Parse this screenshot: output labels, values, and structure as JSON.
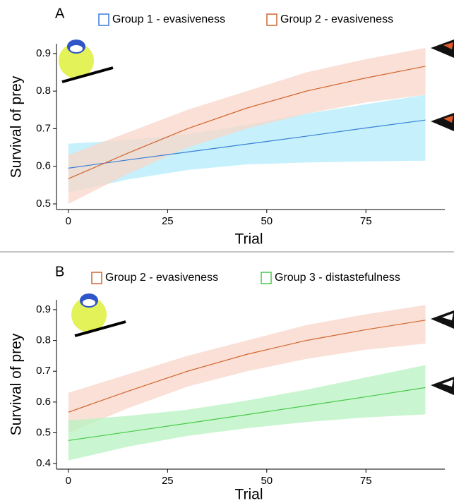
{
  "chart_data": [
    {
      "type": "line-band",
      "panel_label": "A",
      "xlabel": "Trial",
      "ylabel": "Survival of prey",
      "x": [
        0,
        15,
        30,
        45,
        60,
        75,
        90
      ],
      "xlim": [
        -3,
        94
      ],
      "xticks": [
        0,
        25,
        50,
        75
      ],
      "ylim": [
        0.485,
        0.926
      ],
      "yticks": [
        0.5,
        0.6,
        0.7,
        0.8,
        0.9
      ],
      "series": [
        {
          "name": "Group 1 - evasiveness",
          "color": "#3a7fd5",
          "band_color": "#b3ecfb",
          "values": [
            0.595,
            0.617,
            0.638,
            0.659,
            0.68,
            0.702,
            0.723
          ],
          "lower": [
            0.53,
            0.565,
            0.59,
            0.605,
            0.61,
            0.613,
            0.615
          ],
          "upper": [
            0.66,
            0.67,
            0.685,
            0.71,
            0.74,
            0.765,
            0.79
          ]
        },
        {
          "name": "Group 2 - evasiveness",
          "color": "#d2662f",
          "band_color": "#f8d5c8",
          "values": [
            0.567,
            0.635,
            0.7,
            0.755,
            0.8,
            0.835,
            0.866
          ],
          "lower": [
            0.5,
            0.58,
            0.65,
            0.7,
            0.74,
            0.77,
            0.79
          ],
          "upper": [
            0.63,
            0.69,
            0.75,
            0.8,
            0.85,
            0.885,
            0.915
          ]
        }
      ]
    },
    {
      "type": "line-band",
      "panel_label": "B",
      "xlabel": "Trial",
      "ylabel": "Survival of prey",
      "x": [
        0,
        15,
        30,
        45,
        60,
        75,
        90
      ],
      "xlim": [
        -3,
        94
      ],
      "xticks": [
        0,
        25,
        50,
        75
      ],
      "ylim": [
        0.382,
        0.932
      ],
      "yticks": [
        0.4,
        0.5,
        0.6,
        0.7,
        0.8,
        0.9
      ],
      "series": [
        {
          "name": "Group 2 - evasiveness",
          "color": "#d2662f",
          "band_color": "#f8d5c8",
          "values": [
            0.567,
            0.635,
            0.7,
            0.755,
            0.8,
            0.835,
            0.866
          ],
          "lower": [
            0.5,
            0.58,
            0.65,
            0.7,
            0.74,
            0.77,
            0.79
          ],
          "upper": [
            0.63,
            0.69,
            0.75,
            0.8,
            0.85,
            0.885,
            0.915
          ]
        },
        {
          "name": "Group 3 - distastefulness",
          "color": "#49c94a",
          "band_color": "#b7f3c0",
          "values": [
            0.475,
            0.503,
            0.531,
            0.559,
            0.588,
            0.617,
            0.647
          ],
          "lower": [
            0.41,
            0.455,
            0.49,
            0.515,
            0.535,
            0.55,
            0.56
          ],
          "upper": [
            0.54,
            0.555,
            0.575,
            0.605,
            0.64,
            0.68,
            0.72
          ]
        }
      ]
    }
  ]
}
